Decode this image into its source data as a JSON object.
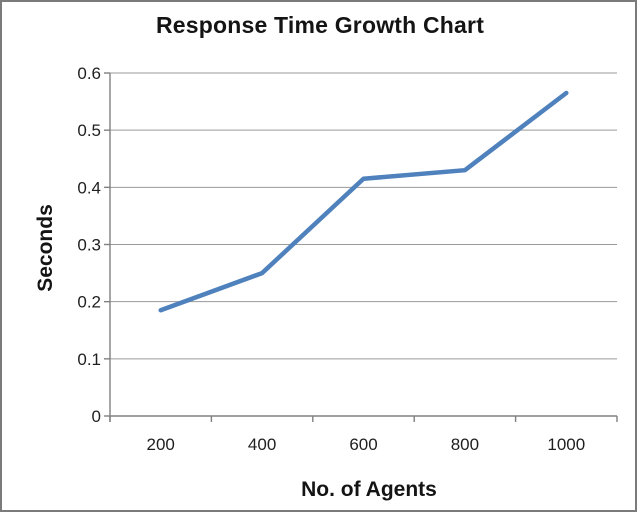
{
  "frame": {
    "border_color": "#7b7b7b",
    "background": "#ffffff"
  },
  "chart_data": {
    "type": "line",
    "title": "Response Time Growth Chart",
    "xlabel": "No. of Agents",
    "ylabel": "Seconds",
    "categories": [
      "200",
      "400",
      "600",
      "800",
      "1000"
    ],
    "values": [
      0.185,
      0.25,
      0.415,
      0.43,
      0.565
    ],
    "series_name": "Response Time",
    "ylim": [
      0,
      0.6
    ],
    "ytick_step": 0.1,
    "ytick_labels": [
      "0.6",
      "0.5",
      "0.4",
      "0.3",
      "0.2",
      "0.1",
      "0"
    ],
    "grid": true,
    "legend_position": "none",
    "colors": {
      "line": "#4F81BD",
      "grid": "#9a9a9a",
      "axis": "#808080",
      "text": "#1f1f1f"
    }
  }
}
